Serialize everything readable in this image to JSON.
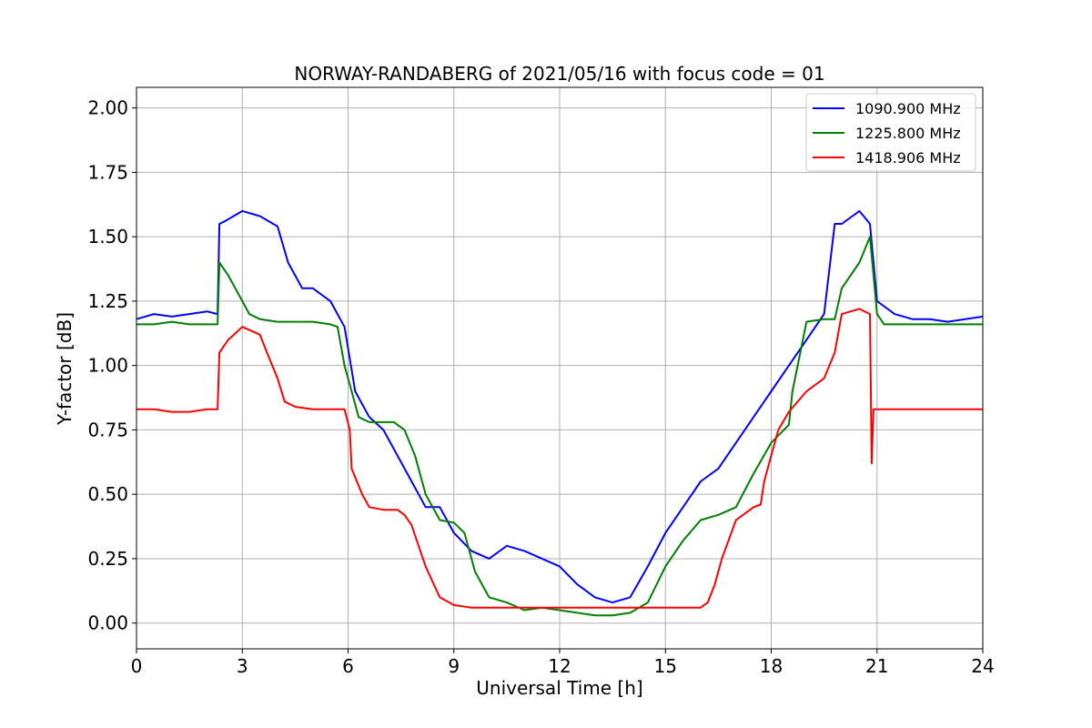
{
  "chart_data": {
    "type": "line",
    "title": "NORWAY-RANDABERG of 2021/05/16 with focus code = 01",
    "xlabel": "Universal Time [h]",
    "ylabel": "Y-factor [dB]",
    "xlim": [
      0,
      24
    ],
    "ylim": [
      -0.1,
      2.08
    ],
    "xticks": [
      0,
      3,
      6,
      9,
      12,
      15,
      18,
      21,
      24
    ],
    "xtick_labels": [
      "0",
      "3",
      "6",
      "9",
      "12",
      "15",
      "18",
      "21",
      "24"
    ],
    "yticks": [
      0,
      0.25,
      0.5,
      0.75,
      1.0,
      1.25,
      1.5,
      1.75,
      2.0
    ],
    "ytick_labels": [
      "0.00",
      "0.25",
      "0.50",
      "0.75",
      "1.00",
      "1.25",
      "1.50",
      "1.75",
      "2.00"
    ],
    "grid": true,
    "legend_position": "top-right",
    "series": [
      {
        "name": "1090.900 MHz",
        "color": "#0000ff",
        "x": [
          0,
          0.5,
          1,
          1.5,
          2,
          2.3,
          2.35,
          2.5,
          3,
          3.5,
          4,
          4.3,
          4.7,
          5,
          5.5,
          5.9,
          6.2,
          6.6,
          7,
          7.4,
          7.8,
          8.2,
          8.6,
          9,
          9.5,
          10,
          10.5,
          11,
          11.5,
          12,
          12.5,
          13,
          13.5,
          14,
          14.5,
          15,
          15.5,
          16,
          16.5,
          17,
          17.5,
          18,
          18.5,
          19,
          19.5,
          19.8,
          20,
          20.5,
          20.8,
          21,
          21.5,
          22,
          22.5,
          23,
          23.5,
          24
        ],
        "y": [
          1.18,
          1.2,
          1.19,
          1.2,
          1.21,
          1.2,
          1.55,
          1.56,
          1.6,
          1.58,
          1.54,
          1.4,
          1.3,
          1.3,
          1.25,
          1.15,
          0.9,
          0.8,
          0.75,
          0.65,
          0.55,
          0.45,
          0.45,
          0.35,
          0.28,
          0.25,
          0.3,
          0.28,
          0.25,
          0.22,
          0.15,
          0.1,
          0.08,
          0.1,
          0.22,
          0.35,
          0.45,
          0.55,
          0.6,
          0.7,
          0.8,
          0.9,
          1.0,
          1.1,
          1.2,
          1.55,
          1.55,
          1.6,
          1.55,
          1.25,
          1.2,
          1.18,
          1.18,
          1.17,
          1.18,
          1.19
        ]
      },
      {
        "name": "1225.800 MHz",
        "color": "#008000",
        "x": [
          0,
          0.5,
          1,
          1.5,
          2,
          2.3,
          2.35,
          2.6,
          3,
          3.2,
          3.5,
          4,
          4.5,
          5,
          5.5,
          5.7,
          5.9,
          6,
          6.1,
          6.3,
          6.6,
          7,
          7.3,
          7.6,
          7.9,
          8.2,
          8.6,
          9,
          9.3,
          9.6,
          10,
          10.5,
          11,
          11.5,
          12,
          12.5,
          13,
          13.5,
          14,
          14.5,
          15,
          15.5,
          16,
          16.5,
          17,
          17.5,
          18,
          18.5,
          18.6,
          19,
          19.5,
          19.8,
          20,
          20.5,
          20.8,
          21,
          21.2,
          22,
          23,
          24
        ],
        "y": [
          1.16,
          1.16,
          1.17,
          1.16,
          1.16,
          1.16,
          1.4,
          1.35,
          1.25,
          1.2,
          1.18,
          1.17,
          1.17,
          1.17,
          1.16,
          1.15,
          1.0,
          0.95,
          0.9,
          0.8,
          0.78,
          0.78,
          0.78,
          0.75,
          0.65,
          0.5,
          0.4,
          0.39,
          0.35,
          0.2,
          0.1,
          0.08,
          0.05,
          0.06,
          0.05,
          0.04,
          0.03,
          0.03,
          0.04,
          0.08,
          0.22,
          0.32,
          0.4,
          0.42,
          0.45,
          0.58,
          0.7,
          0.77,
          0.9,
          1.17,
          1.18,
          1.18,
          1.3,
          1.4,
          1.5,
          1.2,
          1.16,
          1.16,
          1.16,
          1.16
        ]
      },
      {
        "name": "1418.906 MHz",
        "color": "#ff0000",
        "x": [
          0,
          0.5,
          1,
          1.5,
          2,
          2.3,
          2.35,
          2.6,
          3,
          3.5,
          3.7,
          4,
          4.2,
          4.5,
          5,
          5.5,
          5.9,
          6.05,
          6.1,
          6.4,
          6.6,
          7,
          7.4,
          7.6,
          7.8,
          8.0,
          8.2,
          8.4,
          8.6,
          9,
          9.5,
          10,
          10.5,
          11,
          11.5,
          12,
          12.5,
          13,
          13.5,
          14,
          14.5,
          15,
          15.5,
          16,
          16.2,
          16.4,
          16.6,
          17,
          17.5,
          17.7,
          17.8,
          18,
          18.2,
          18.5,
          19,
          19.5,
          19.8,
          20,
          20.5,
          20.8,
          20.85,
          20.9,
          21,
          21.5,
          22,
          22.5,
          23,
          23.5,
          24
        ],
        "y": [
          0.83,
          0.83,
          0.82,
          0.82,
          0.83,
          0.83,
          1.05,
          1.1,
          1.15,
          1.12,
          1.05,
          0.95,
          0.86,
          0.84,
          0.83,
          0.83,
          0.83,
          0.75,
          0.6,
          0.5,
          0.45,
          0.44,
          0.44,
          0.42,
          0.38,
          0.3,
          0.22,
          0.16,
          0.1,
          0.07,
          0.06,
          0.06,
          0.06,
          0.06,
          0.06,
          0.06,
          0.06,
          0.06,
          0.06,
          0.06,
          0.06,
          0.06,
          0.06,
          0.06,
          0.08,
          0.15,
          0.25,
          0.4,
          0.45,
          0.46,
          0.55,
          0.65,
          0.75,
          0.82,
          0.9,
          0.95,
          1.05,
          1.2,
          1.22,
          1.2,
          0.62,
          0.83,
          0.83,
          0.83,
          0.83,
          0.83,
          0.83,
          0.83,
          0.83
        ]
      }
    ]
  }
}
